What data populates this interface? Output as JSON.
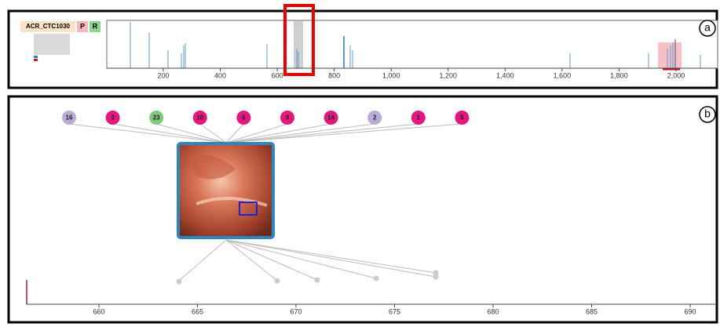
{
  "overview": {
    "case_id": "ACR_CTC1030",
    "tags": [
      "P",
      "R"
    ],
    "axis_ticks": [
      200,
      400,
      600,
      800,
      {
        "value": 1000,
        "label": "1,000"
      },
      {
        "value": 1200,
        "label": "1,200"
      },
      {
        "value": 1400,
        "label": "1,400"
      },
      {
        "value": 1600,
        "label": "1,600"
      },
      {
        "value": 1800,
        "label": "1,800"
      },
      {
        "value": 2000,
        "label": "2,000"
      }
    ]
  },
  "panel_labels": [
    "a",
    "b"
  ],
  "detail": {
    "bubbles": [
      {
        "label": 16,
        "color": "#b9acd6"
      },
      {
        "label": 3,
        "color": "#e3177d"
      },
      {
        "label": 23,
        "color": "#7fc97f"
      },
      {
        "label": 10,
        "color": "#e3177d"
      },
      {
        "label": 6,
        "color": "#e3177d"
      },
      {
        "label": 9,
        "color": "#e3177d"
      },
      {
        "label": 14,
        "color": "#e3177d"
      },
      {
        "label": 2,
        "color": "#b9acd6"
      },
      {
        "label": 1,
        "color": "#e3177d"
      },
      {
        "label": 5,
        "color": "#e3177d"
      }
    ],
    "axis_ticks": [
      660,
      665,
      670,
      675,
      680,
      685,
      690
    ]
  }
}
